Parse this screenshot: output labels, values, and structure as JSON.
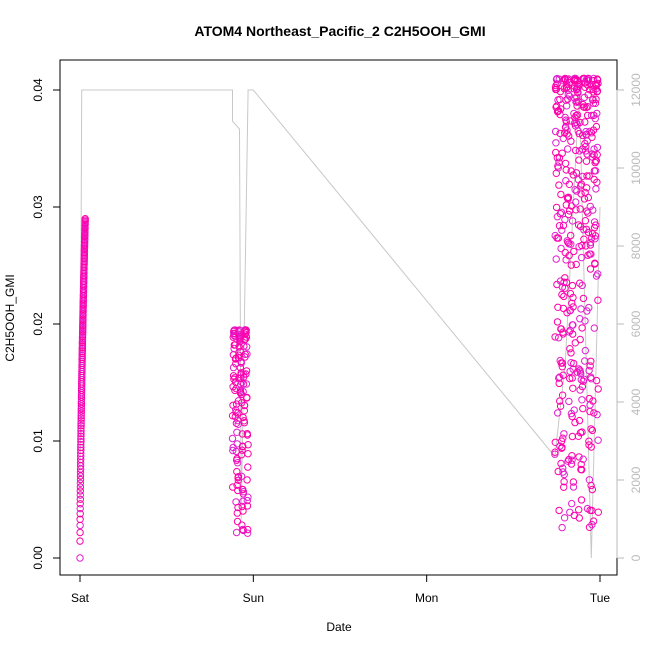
{
  "chart_data": {
    "type": "scatter",
    "title": "ATOM4 Northeast_Pacific_2 C2H5OOH_GMI",
    "xlabel": "Date",
    "ylabel": "C2H5OOH_GMI",
    "x_ticks": [
      "Sat",
      "Sun",
      "Mon",
      "Tue"
    ],
    "y_ticks": [
      "0.00",
      "0.01",
      "0.02",
      "0.03",
      "0.04"
    ],
    "y_right_ticks": [
      "0",
      "2000",
      "4000",
      "6000",
      "8000",
      "10000",
      "12000"
    ],
    "xlim_days": [
      0,
      3.05
    ],
    "ylim": [
      0,
      0.041
    ],
    "y_right_lim": [
      0,
      12000
    ],
    "grid": false,
    "colors": {
      "points": "#ff00aa",
      "points_alt": "#e020d0",
      "altitude_line": "#c8c8c8",
      "axis": "#000000",
      "right_axis": "#bbbbbb"
    },
    "series": [
      {
        "marker": "circle",
        "axis": "left",
        "segments": [
          {
            "x": [
              0.0,
              0.03
            ],
            "y_min": 0.0,
            "y_max": 0.029
          },
          {
            "x": [
              0.88,
              0.97
            ],
            "y_min": 0.0,
            "y_max": 0.0195
          },
          {
            "x": [
              2.74,
              2.99
            ],
            "y_min": 0.0005,
            "y_max": 0.041
          }
        ]
      },
      {
        "axis": "right",
        "style": "line",
        "points": [
          [
            0.0,
            1500
          ],
          [
            0.01,
            12000
          ],
          [
            0.88,
            12000
          ],
          [
            0.88,
            11200
          ],
          [
            0.92,
            11000
          ],
          [
            0.93,
            1000
          ],
          [
            0.97,
            12000
          ],
          [
            1.0,
            12000
          ],
          [
            2.74,
            2600
          ],
          [
            2.8,
            5000
          ],
          [
            2.88,
            12000
          ],
          [
            2.95,
            0
          ],
          [
            3.0,
            9000
          ]
        ]
      }
    ]
  }
}
